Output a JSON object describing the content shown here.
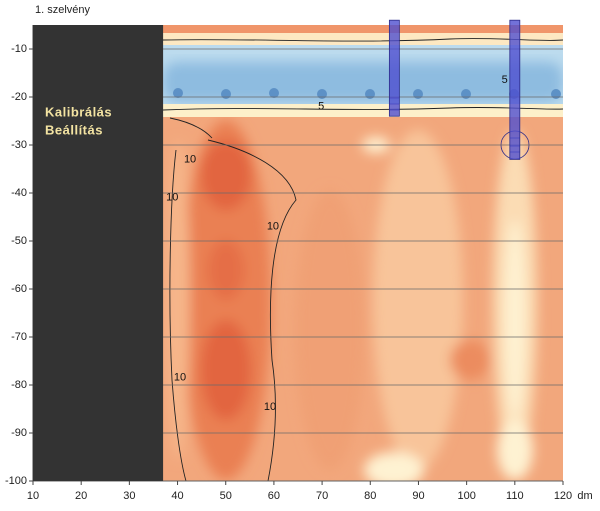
{
  "chart_data": {
    "type": "contour",
    "title": "1. szelvény",
    "x_label": "dm",
    "xlim": [
      10,
      120
    ],
    "ylim": [
      -100,
      -5
    ],
    "xticks": [
      10,
      20,
      30,
      40,
      50,
      60,
      70,
      80,
      90,
      100,
      110,
      120
    ],
    "yticks": [
      -10,
      -20,
      -30,
      -40,
      -50,
      -60,
      -70,
      -80,
      -90,
      -100
    ],
    "grid": true,
    "masked_region": {
      "x": [
        10,
        37
      ],
      "labels": [
        "Kalibrálás",
        "Beállítás"
      ]
    },
    "contour_labels": [
      {
        "level": 10,
        "x": 42.6,
        "y": -33
      },
      {
        "level": 10,
        "x": 38.9,
        "y": -41
      },
      {
        "level": 10,
        "x": 59.8,
        "y": -47
      },
      {
        "level": 10,
        "x": 40.5,
        "y": -78.5
      },
      {
        "level": 10,
        "x": 59.2,
        "y": -84.6
      },
      {
        "level": 5,
        "x": 107.9,
        "y": -16.5
      },
      {
        "level": 5,
        "x": 69.8,
        "y": -22
      }
    ],
    "boreholes": [
      {
        "x": 85,
        "top": -4,
        "bottom": -24
      },
      {
        "x": 110,
        "top": -4,
        "bottom": -33
      }
    ]
  }
}
